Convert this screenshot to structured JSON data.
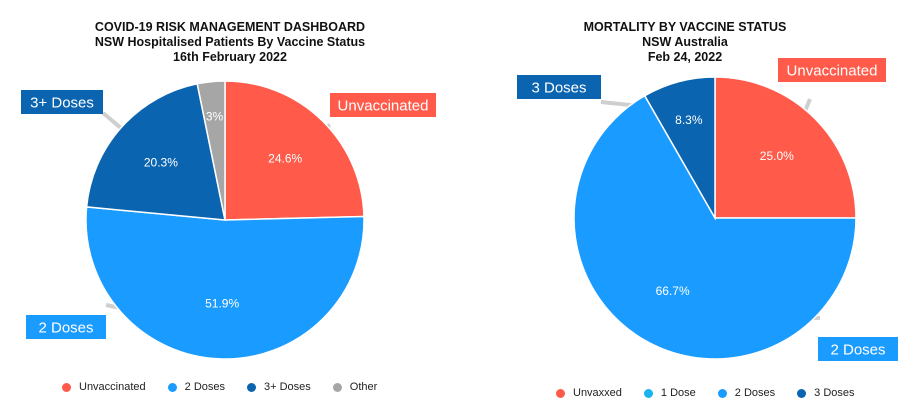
{
  "chart_data": [
    {
      "type": "pie",
      "title": "COVID-19 RISK MANAGEMENT DASHBOARD",
      "subtitle": "NSW Hospitalised Patients By Vaccine Status",
      "date": "16th February 2022",
      "slices": [
        {
          "label": "Unvaccinated",
          "value": 24.6,
          "color": "#ff5a4a",
          "data_label": "24.6%",
          "callout": "Unvaccinated"
        },
        {
          "label": "2 Doses",
          "value": 51.9,
          "color": "#1a9bff",
          "data_label": "51.9%",
          "callout": "2 Doses"
        },
        {
          "label": "3+ Doses",
          "value": 20.3,
          "color": "#0b64b0",
          "data_label": "20.3%",
          "callout": "3+ Doses"
        },
        {
          "label": "Other",
          "value": 3.2,
          "color": "#a6a6a6",
          "data_label": "3%",
          "callout": ""
        }
      ],
      "legend": [
        "Unvaccinated",
        "2 Doses",
        "3+ Doses",
        "Other"
      ],
      "legend_position": "bottom"
    },
    {
      "type": "pie",
      "title": "MORTALITY BY VACCINE STATUS",
      "subtitle": "NSW Australia",
      "date": "Feb 24, 2022",
      "slices": [
        {
          "label": "Unvaxxed",
          "value": 25.0,
          "color": "#ff5a4a",
          "data_label": "25.0%",
          "callout": "Unvaccinated"
        },
        {
          "label": "1 Dose",
          "value": 0,
          "color": "#19b4f0",
          "data_label": "",
          "callout": ""
        },
        {
          "label": "2 Doses",
          "value": 66.7,
          "color": "#1a9bff",
          "data_label": "66.7%",
          "callout": "2 Doses"
        },
        {
          "label": "3 Doses",
          "value": 8.3,
          "color": "#0b64b0",
          "data_label": "8.3%",
          "callout": "3 Doses"
        }
      ],
      "legend": [
        "Unvaxxed",
        "1 Dose",
        "2 Doses",
        "3 Doses"
      ],
      "legend_position": "bottom"
    }
  ]
}
